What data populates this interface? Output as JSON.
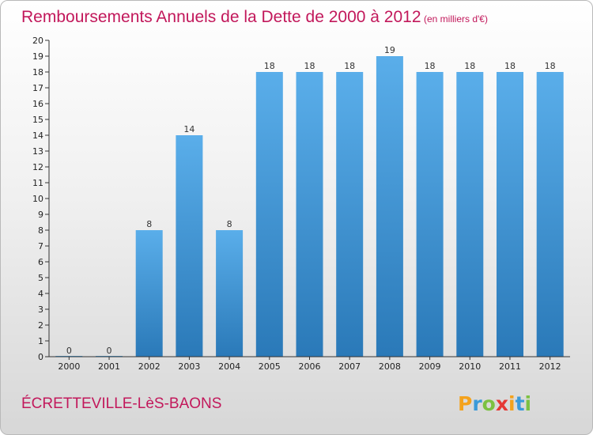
{
  "header": {
    "title": "Remboursements Annuels de la Dette de 2000 à 2012",
    "unit": "(en milliers d'€)"
  },
  "footer": {
    "commune": "ÉCRETTEVILLE-LèS-BAONS"
  },
  "logo": {
    "letters": [
      "P",
      "r",
      "o",
      "x",
      "i",
      "t",
      "i"
    ],
    "colors": [
      "#f4a21c",
      "#3a9ad9",
      "#7cc142",
      "#e53935",
      "#f4a21c",
      "#3a9ad9",
      "#7cc142"
    ]
  },
  "colors": {
    "title": "#c2185b",
    "bar_top": "#5aaeea",
    "bar_bottom": "#2a79b8",
    "axis": "#333333"
  },
  "chart_data": {
    "type": "bar",
    "title": "Remboursements Annuels de la Dette de 2000 à 2012",
    "subtitle": "(en milliers d'€)",
    "categories": [
      "2000",
      "2001",
      "2002",
      "2003",
      "2004",
      "2005",
      "2006",
      "2007",
      "2008",
      "2009",
      "2010",
      "2011",
      "2012"
    ],
    "values": [
      0,
      0,
      8,
      14,
      8,
      18,
      18,
      18,
      19,
      18,
      18,
      18,
      18
    ],
    "data_labels": [
      "0",
      "0",
      "8",
      "14",
      "8",
      "18",
      "18",
      "18",
      "19",
      "18",
      "18",
      "18",
      "18"
    ],
    "yticks": [
      "0",
      "1",
      "2",
      "3",
      "4",
      "5",
      "6",
      "7",
      "8",
      "9",
      "10",
      "11",
      "12",
      "13",
      "14",
      "15",
      "16",
      "17",
      "18",
      "19",
      "20"
    ],
    "ylim": [
      0,
      20
    ],
    "xlabel": "",
    "ylabel": "",
    "grid": false,
    "legend": "none"
  }
}
